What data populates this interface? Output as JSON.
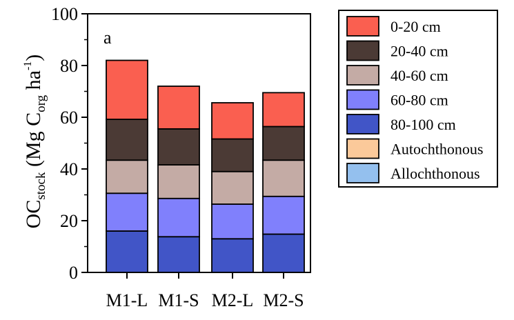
{
  "chart_data": {
    "type": "bar",
    "stacked": true,
    "panel_label": "a",
    "categories": [
      "M1-L",
      "M1-S",
      "M2-L",
      "M2-S"
    ],
    "ylim": [
      0,
      100
    ],
    "yticks": [
      0,
      20,
      40,
      60,
      80,
      100
    ],
    "ylabel": {
      "main": "OC",
      "sub": "stock",
      "open": " (Mg C",
      "sub2": "org",
      "mid": " ha",
      "sup": "-1",
      "close": ")"
    },
    "legend_position": "right",
    "series": [
      {
        "name": "80-100 cm",
        "color": "#4155c7",
        "values": [
          16.0,
          13.8,
          13.0,
          14.8
        ]
      },
      {
        "name": "60-80 cm",
        "color": "#8080fc",
        "values": [
          14.6,
          14.8,
          13.4,
          14.6
        ]
      },
      {
        "name": "40-60 cm",
        "color": "#c4aba5",
        "values": [
          12.8,
          13.0,
          12.6,
          14.0
        ]
      },
      {
        "name": "20-40 cm",
        "color": "#4b3a35",
        "values": [
          15.8,
          13.9,
          12.6,
          13.0
        ]
      },
      {
        "name": "0-20 cm",
        "color": "#fa5f50",
        "values": [
          22.8,
          16.5,
          14.0,
          13.1
        ]
      },
      {
        "name": "Autochthonous",
        "color": "#fbc99a",
        "values": [
          0,
          0,
          0,
          0
        ]
      },
      {
        "name": "Allochthonous",
        "color": "#94c0ee",
        "values": [
          0,
          0,
          0,
          0
        ]
      }
    ],
    "legend_order": [
      "0-20 cm",
      "20-40 cm",
      "40-60 cm",
      "60-80 cm",
      "80-100 cm",
      "Autochthonous",
      "Allochthonous"
    ]
  }
}
